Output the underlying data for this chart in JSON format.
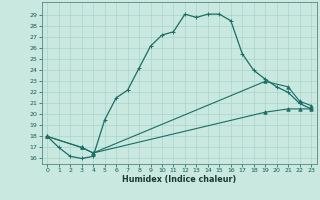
{
  "xlabel": "Humidex (Indice chaleur)",
  "x_ticks": [
    0,
    1,
    2,
    3,
    4,
    5,
    6,
    7,
    8,
    9,
    10,
    11,
    12,
    13,
    14,
    15,
    16,
    17,
    18,
    19,
    20,
    21,
    22,
    23
  ],
  "ylim": [
    15.5,
    30.2
  ],
  "xlim": [
    -0.5,
    23.5
  ],
  "yticks": [
    16,
    17,
    18,
    19,
    20,
    21,
    22,
    23,
    24,
    25,
    26,
    27,
    28,
    29
  ],
  "bg_color": "#c8e8e0",
  "grid_color": "#aad4cc",
  "line_color": "#1a6e64",
  "line1_x": [
    0,
    1,
    2,
    3,
    4,
    5,
    6,
    7,
    8,
    9,
    10,
    11,
    12,
    13,
    14,
    15,
    16,
    17,
    18,
    19,
    20,
    21,
    22,
    23
  ],
  "line1_y": [
    18,
    17,
    16.2,
    16,
    16.2,
    19.5,
    21.5,
    22.2,
    24.2,
    26.2,
    27.2,
    27.5,
    29.1,
    28.8,
    29.1,
    29.1,
    28.5,
    25.5,
    24.0,
    23.2,
    22.5,
    22.0,
    21.0,
    20.5
  ],
  "line2_x": [
    0,
    3,
    4,
    19,
    21,
    22,
    23
  ],
  "line2_y": [
    18,
    17,
    16.5,
    23.0,
    22.5,
    21.2,
    20.8
  ],
  "line3_x": [
    0,
    3,
    4,
    19,
    21,
    22,
    23
  ],
  "line3_y": [
    18,
    17,
    16.5,
    20.2,
    20.5,
    20.5,
    20.5
  ]
}
